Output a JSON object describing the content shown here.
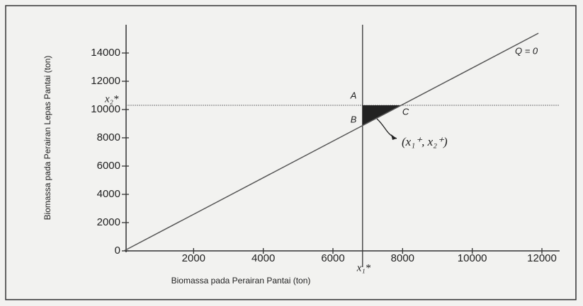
{
  "chart_data": {
    "type": "line",
    "xlabel": "Biomassa pada Perairan Pantai (ton)",
    "ylabel": "Biomassa pada Perairan Lepas Pantai (ton)",
    "xlim": [
      0,
      12000
    ],
    "ylim": [
      0,
      14000
    ],
    "xticks": [
      2000,
      4000,
      6000,
      8000,
      10000,
      12000
    ],
    "yticks": [
      0,
      2000,
      4000,
      6000,
      8000,
      10000,
      12000,
      14000
    ],
    "series": [
      {
        "name": "Q = 0",
        "color": "#555555",
        "x": [
          0,
          11900
        ],
        "values": [
          0,
          15400
        ]
      }
    ],
    "hline": 10300,
    "vline": 6850,
    "region": {
      "x": [
        6850,
        6850,
        7950
      ],
      "y": [
        10300,
        8900,
        10300
      ],
      "color": "#222222"
    },
    "point_labels": [
      "A",
      "B",
      "C"
    ],
    "x_star_label": "x₁*",
    "y_star_label": "x₂*",
    "annotation": "(x₁⁺, x₂⁺)"
  }
}
